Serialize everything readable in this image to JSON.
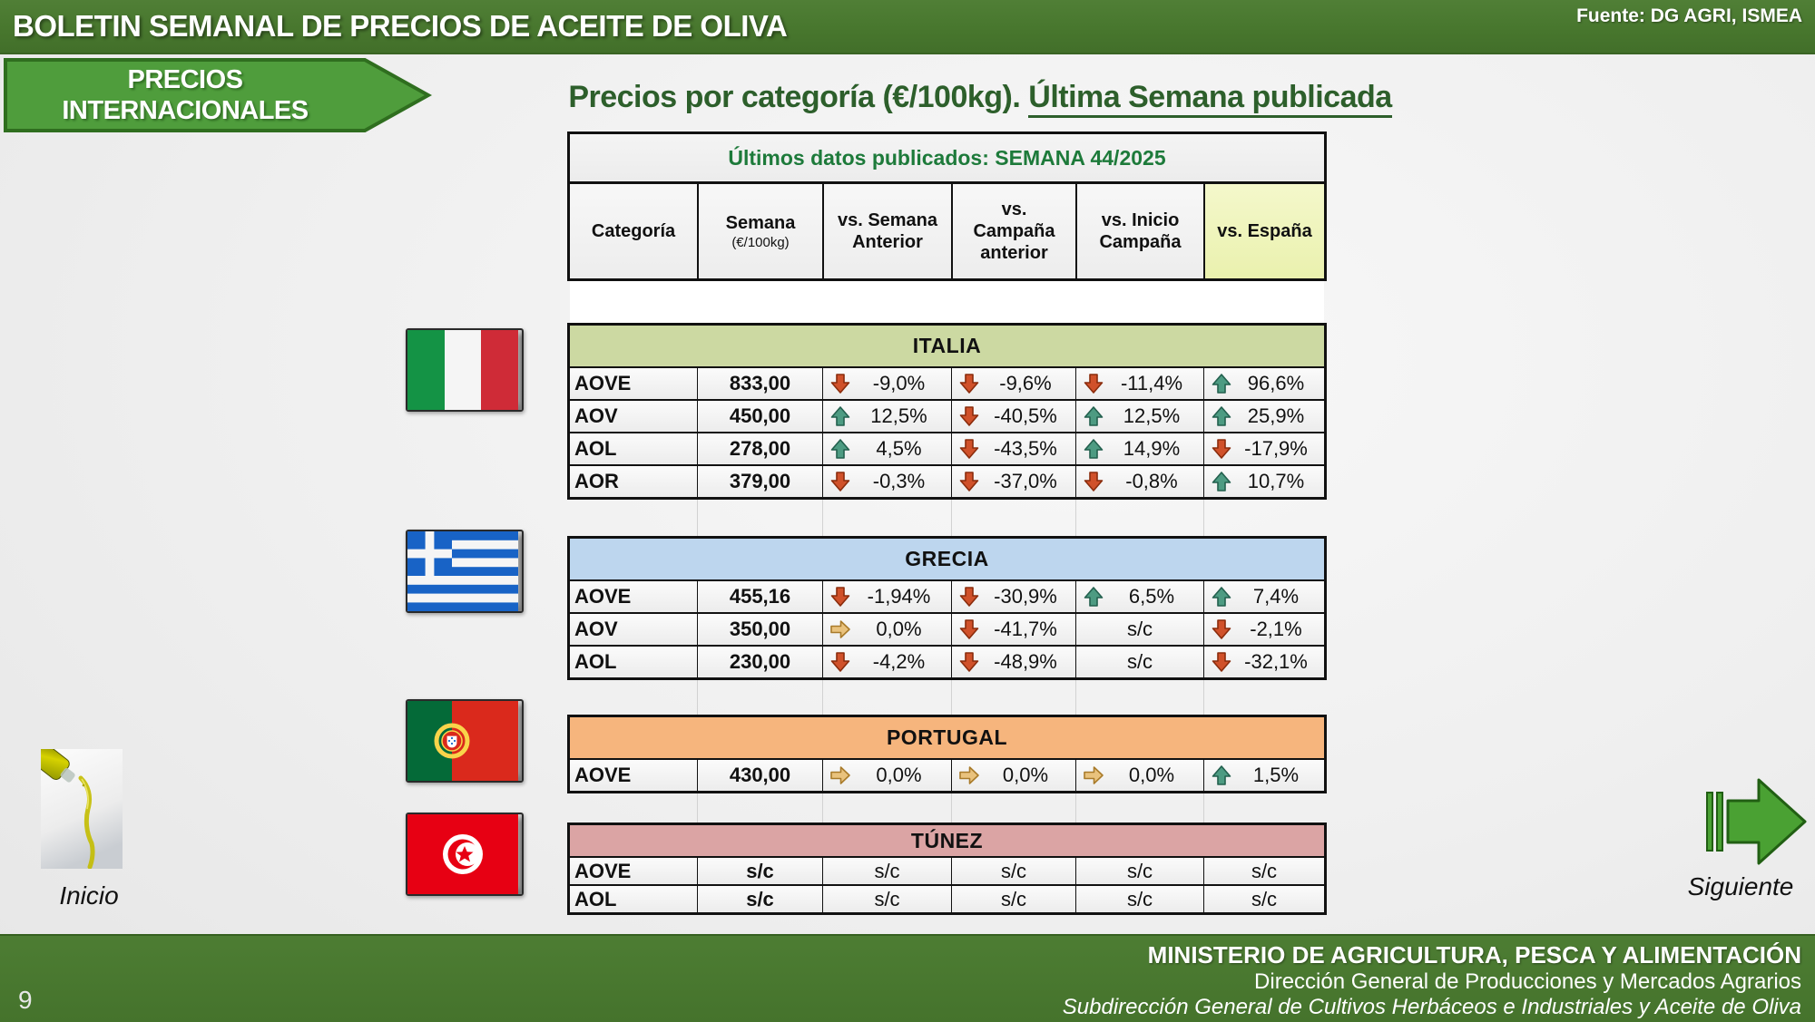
{
  "header": {
    "title": "BOLETIN SEMANAL DE PRECIOS DE ACEITE DE OLIVA",
    "source": "Fuente: DG AGRI, ISMEA"
  },
  "banner": {
    "line1": "PRECIOS",
    "line2": "INTERNACIONALES"
  },
  "page_title": {
    "prefix": "Precios por categoría (€/100kg). ",
    "underlined": "Última Semana publicada"
  },
  "table": {
    "published_label": "Últimos datos publicados: SEMANA 44/2025",
    "columns": [
      {
        "lines": [
          "Categoría"
        ]
      },
      {
        "lines": [
          "Semana"
        ],
        "sub": "(€/100kg)"
      },
      {
        "lines": [
          "vs. Semana",
          "Anterior"
        ]
      },
      {
        "lines": [
          "vs.",
          "Campaña",
          "anterior"
        ]
      },
      {
        "lines": [
          "vs. Inicio",
          "Campaña"
        ]
      },
      {
        "lines": [
          "vs. España"
        ],
        "highlight": true
      }
    ],
    "sections": [
      {
        "country": "ITALIA",
        "flag": "italy-flag",
        "header_color": "#ccd9a2",
        "rows": [
          {
            "category": "AOVE",
            "price": "833,00",
            "comparisons": [
              {
                "trend": "down",
                "value": "-9,0%"
              },
              {
                "trend": "down",
                "value": "-9,6%"
              },
              {
                "trend": "down",
                "value": "-11,4%"
              },
              {
                "trend": "up",
                "value": "96,6%"
              }
            ]
          },
          {
            "category": "AOV",
            "price": "450,00",
            "comparisons": [
              {
                "trend": "up",
                "value": "12,5%"
              },
              {
                "trend": "down",
                "value": "-40,5%"
              },
              {
                "trend": "up",
                "value": "12,5%"
              },
              {
                "trend": "up",
                "value": "25,9%"
              }
            ]
          },
          {
            "category": "AOL",
            "price": "278,00",
            "comparisons": [
              {
                "trend": "up",
                "value": "4,5%"
              },
              {
                "trend": "down",
                "value": "-43,5%"
              },
              {
                "trend": "up",
                "value": "14,9%"
              },
              {
                "trend": "down",
                "value": "-17,9%"
              }
            ]
          },
          {
            "category": "AOR",
            "price": "379,00",
            "comparisons": [
              {
                "trend": "down",
                "value": "-0,3%"
              },
              {
                "trend": "down",
                "value": "-37,0%"
              },
              {
                "trend": "down",
                "value": "-0,8%"
              },
              {
                "trend": "up",
                "value": "10,7%"
              }
            ]
          }
        ]
      },
      {
        "country": "GRECIA",
        "flag": "greece-flag",
        "header_color": "#bdd6ee",
        "rows": [
          {
            "category": "AOVE",
            "price": "455,16",
            "comparisons": [
              {
                "trend": "down",
                "value": "-1,94%"
              },
              {
                "trend": "down",
                "value": "-30,9%"
              },
              {
                "trend": "up",
                "value": "6,5%"
              },
              {
                "trend": "up",
                "value": "7,4%"
              }
            ]
          },
          {
            "category": "AOV",
            "price": "350,00",
            "comparisons": [
              {
                "trend": "flat",
                "value": "0,0%"
              },
              {
                "trend": "down",
                "value": "-41,7%"
              },
              {
                "trend": null,
                "value": "s/c"
              },
              {
                "trend": "down",
                "value": "-2,1%"
              }
            ]
          },
          {
            "category": "AOL",
            "price": "230,00",
            "comparisons": [
              {
                "trend": "down",
                "value": "-4,2%"
              },
              {
                "trend": "down",
                "value": "-48,9%"
              },
              {
                "trend": null,
                "value": "s/c"
              },
              {
                "trend": "down",
                "value": "-32,1%"
              }
            ]
          }
        ]
      },
      {
        "country": "PORTUGAL",
        "flag": "portugal-flag",
        "header_color": "#f6b57d",
        "rows": [
          {
            "category": "AOVE",
            "price": "430,00",
            "comparisons": [
              {
                "trend": "flat",
                "value": "0,0%"
              },
              {
                "trend": "flat",
                "value": "0,0%"
              },
              {
                "trend": "flat",
                "value": "0,0%"
              },
              {
                "trend": "up",
                "value": "1,5%"
              }
            ]
          }
        ]
      },
      {
        "country": "TÚNEZ",
        "flag": "tunisia-flag",
        "header_color": "#dba4a4",
        "compact": true,
        "rows": [
          {
            "category": "AOVE",
            "price": "s/c",
            "comparisons": [
              {
                "trend": null,
                "value": "s/c"
              },
              {
                "trend": null,
                "value": "s/c"
              },
              {
                "trend": null,
                "value": "s/c"
              },
              {
                "trend": null,
                "value": "s/c"
              }
            ]
          },
          {
            "category": "AOL",
            "price": "s/c",
            "comparisons": [
              {
                "trend": null,
                "value": "s/c"
              },
              {
                "trend": null,
                "value": "s/c"
              },
              {
                "trend": null,
                "value": "s/c"
              },
              {
                "trend": null,
                "value": "s/c"
              }
            ]
          }
        ]
      }
    ]
  },
  "nav": {
    "inicio": "Inicio",
    "siguiente": "Siguiente"
  },
  "footer": {
    "line1": "MINISTERIO DE AGRICULTURA, PESCA Y ALIMENTACIÓN",
    "line2": "Dirección General de Producciones y Mercados Agrarios",
    "line3": "Subdirección General de Cultivos Herbáceos e Industriales y Aceite de Oliva",
    "page_number": "9"
  },
  "colors": {
    "header_green": "#47762d",
    "banner_green": "#4f9d3c",
    "banner_border": "#2f6e1f",
    "title_green": "#2d5f2b",
    "published_green": "#1d7a3a",
    "espana_col_bg": "#eff5bd",
    "arrow_down": "#d0512a",
    "arrow_down_dark": "#8a2c0c",
    "arrow_up": "#4d9b82",
    "arrow_up_dark": "#23604e",
    "arrow_flat": "#e9c27d",
    "arrow_flat_dark": "#a97b2a",
    "nav_arrow_green": "#4aa133",
    "nav_arrow_border": "#215f13"
  }
}
